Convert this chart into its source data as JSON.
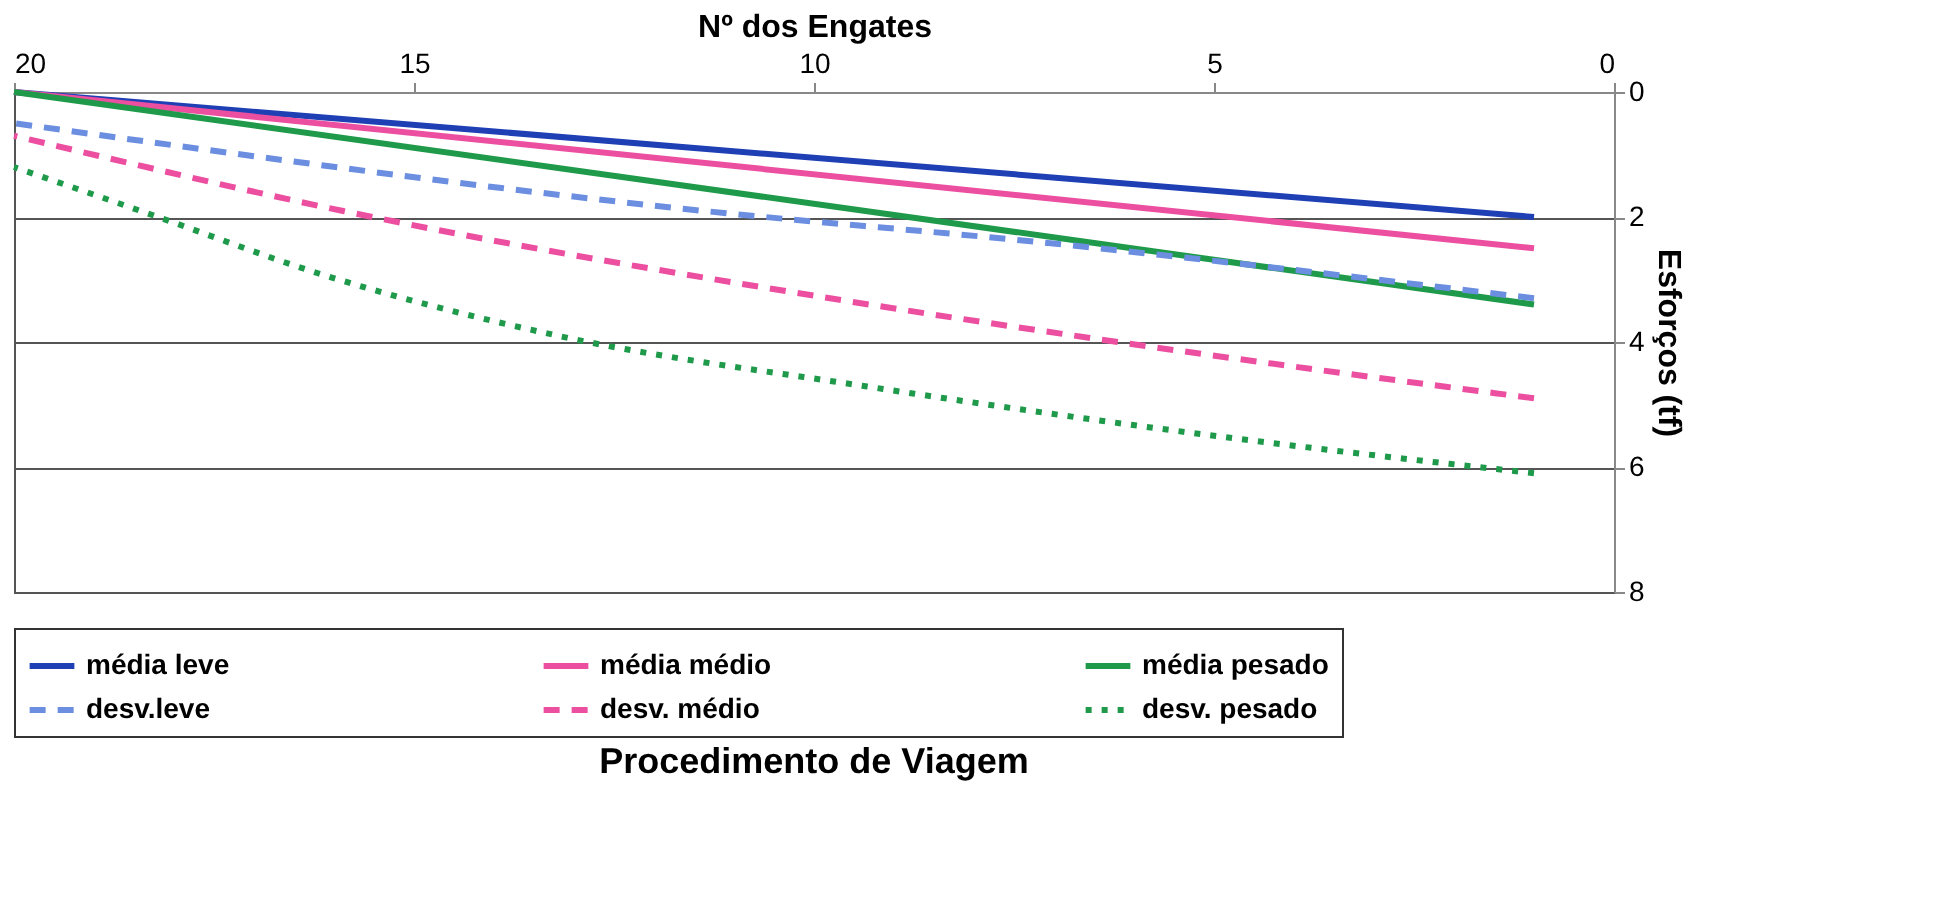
{
  "chart_data": {
    "type": "line",
    "title": "Procedimento de Viagem",
    "xlabel": "Nº dos Engates",
    "ylabel": "Esforços (tf)",
    "xlim": [
      20,
      0
    ],
    "xticks": [
      0,
      5,
      10,
      15,
      20
    ],
    "ylim": [
      8,
      0
    ],
    "yticks": [
      0,
      2,
      4,
      6,
      8
    ],
    "grid": "y",
    "legend": "bottom",
    "series": [
      {
        "name": "média leve",
        "color": "#1f3fb5",
        "line_style": "solid",
        "x": [
          1,
          20
        ],
        "values": [
          2.0,
          0
        ]
      },
      {
        "name": "média médio",
        "color": "#ec4fa0",
        "line_style": "solid",
        "x": [
          1,
          20
        ],
        "values": [
          2.5,
          0
        ]
      },
      {
        "name": "média pesado",
        "color": "#1e9a4a",
        "line_style": "solid",
        "x": [
          1,
          20
        ],
        "values": [
          3.4,
          0
        ]
      },
      {
        "name": "desv.leve",
        "color": "#6b8ee0",
        "line_style": "dashed",
        "x": [
          1,
          7.2,
          11.4,
          20
        ],
        "values": [
          3.3,
          2.4,
          1.9,
          0.5
        ]
      },
      {
        "name": "desv. médio",
        "color": "#ec4fa0",
        "line_style": "dashed",
        "x": [
          1,
          6.2,
          9.8,
          15.9,
          20
        ],
        "values": [
          4.9,
          4.0,
          3.3,
          1.9,
          0.7
        ]
      },
      {
        "name": "desv. pesado",
        "color": "#1e9a4a",
        "line_style": "dotted",
        "x": [
          1,
          5,
          9.4,
          13.2,
          16.2,
          18.2,
          20
        ],
        "values": [
          6.1,
          5.5,
          4.7,
          3.9,
          2.9,
          2.0,
          1.2
        ]
      }
    ]
  }
}
